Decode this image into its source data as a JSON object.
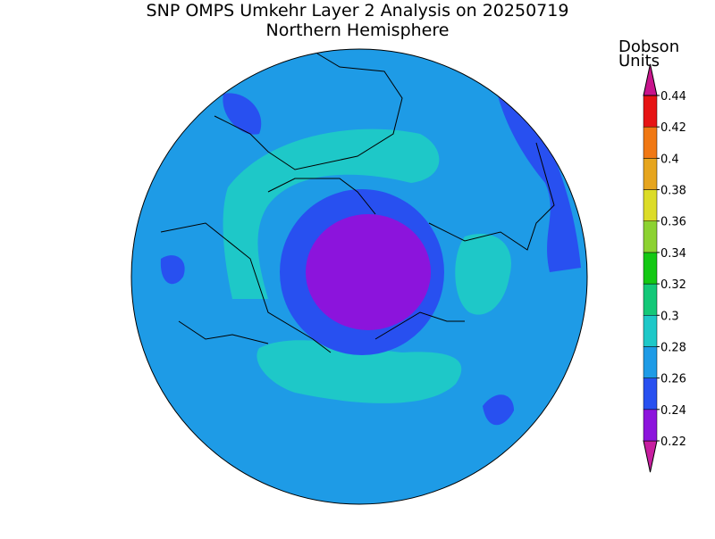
{
  "header": {
    "title": "SNP OMPS Umkehr Layer 2 Analysis on 20250719",
    "subtitle": "Northern Hemisphere"
  },
  "colorbar": {
    "label": [
      "Dobson",
      "Units"
    ],
    "levels": [
      0.22,
      0.24,
      0.26,
      0.28,
      0.3,
      0.32,
      0.34,
      0.36,
      0.38,
      0.4,
      0.42,
      0.44
    ],
    "colors": [
      "#c81ea0",
      "#8c14dc",
      "#2850f0",
      "#1e9be6",
      "#1ec8c8",
      "#14c878",
      "#14c814",
      "#8cd232",
      "#dcdc28",
      "#e6a51e",
      "#f07814",
      "#e61414",
      "#c8148c"
    ]
  }
}
